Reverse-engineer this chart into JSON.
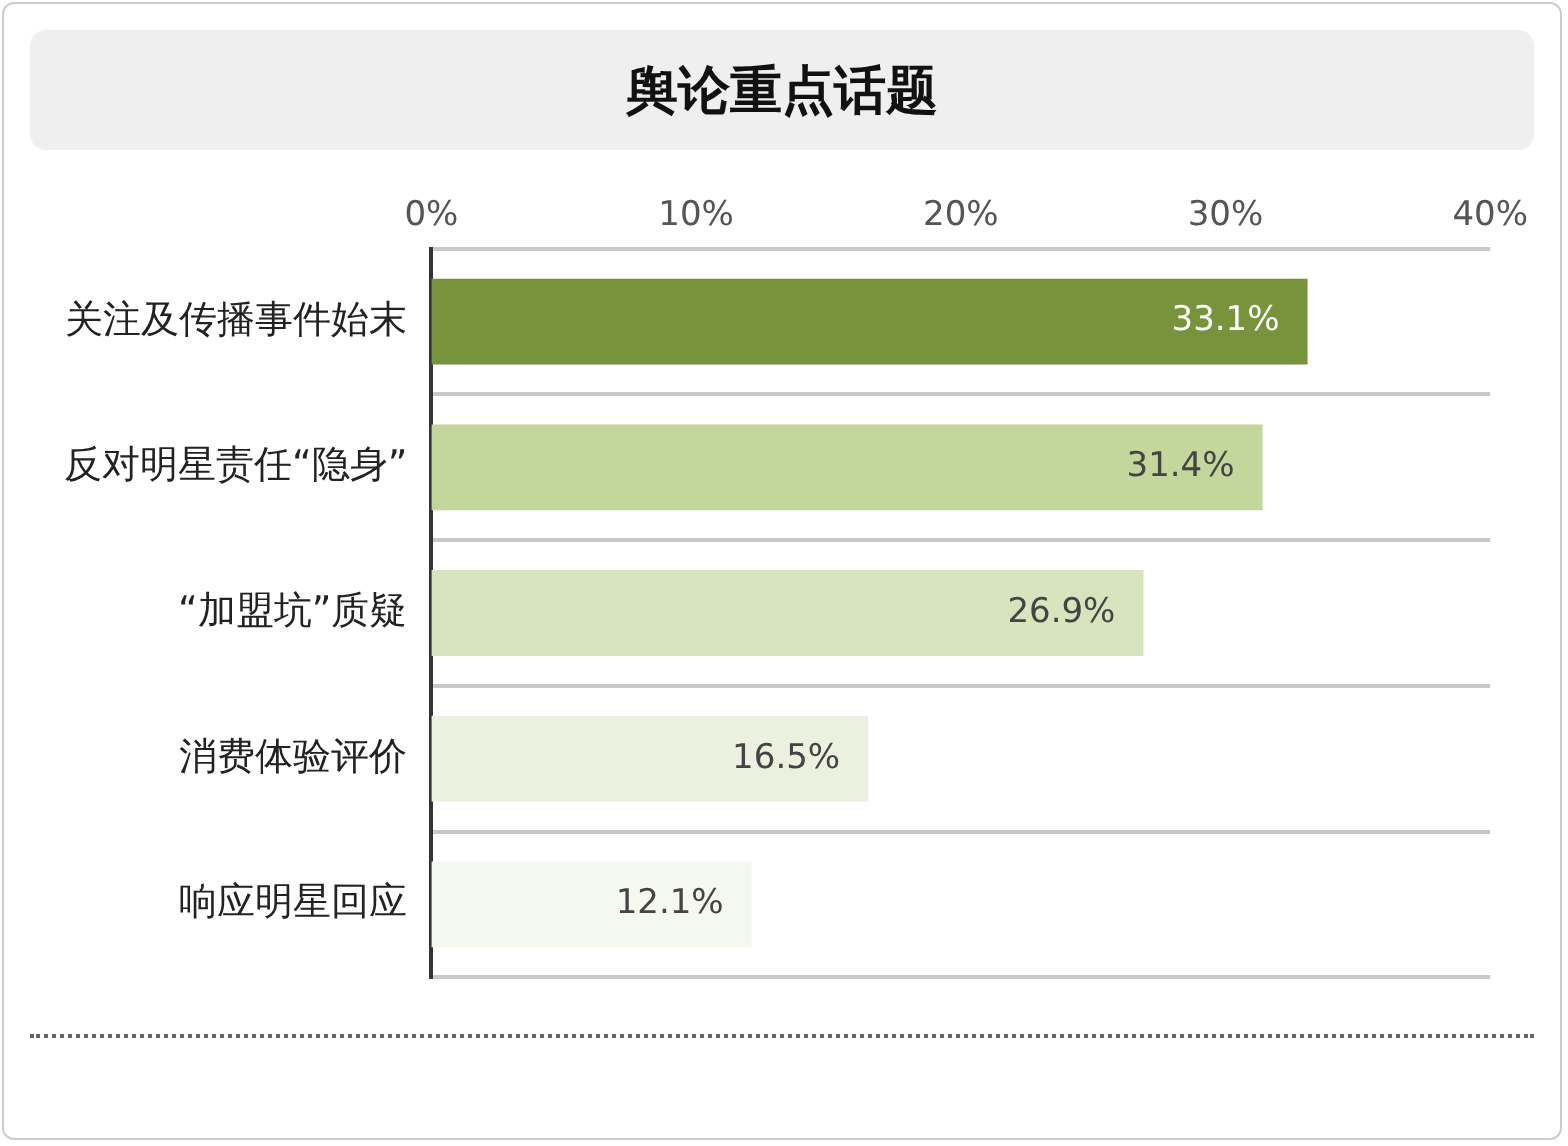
{
  "chart_data": {
    "type": "bar",
    "orientation": "horizontal",
    "title": "舆论重点话题",
    "categories": [
      "关注及传播事件始末",
      "反对明星责任“隐身”",
      "“加盟坑”质疑",
      "消费体验评价",
      "响应明星回应"
    ],
    "values": [
      33.1,
      31.4,
      26.9,
      16.5,
      12.1
    ],
    "colors": [
      "#77933c",
      "#c3d69b",
      "#d7e4bd",
      "#ebf1de",
      "#f5f8ee"
    ],
    "value_labels": [
      "33.1%",
      "31.4%",
      "26.9%",
      "16.5%",
      "12.1%"
    ],
    "xlim": [
      0,
      40
    ],
    "xticks": [
      {
        "value": 0,
        "label": "0%"
      },
      {
        "value": 10,
        "label": "10%"
      },
      {
        "value": 20,
        "label": "20%"
      },
      {
        "value": 30,
        "label": "30%"
      },
      {
        "value": 40,
        "label": "40%"
      }
    ],
    "grid": "y",
    "legend": false
  }
}
